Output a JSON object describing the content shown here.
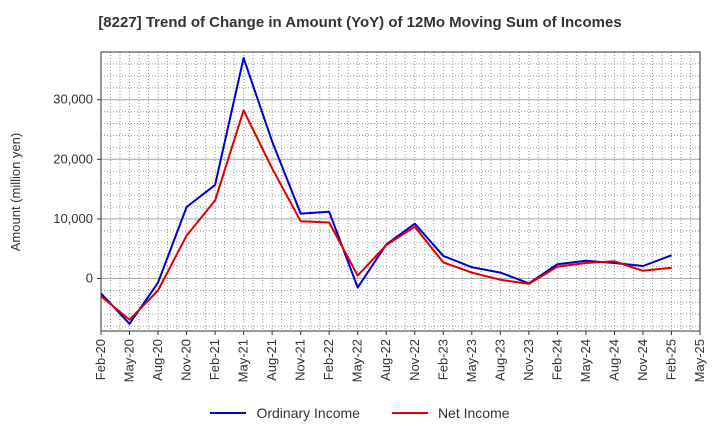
{
  "chart_data": {
    "type": "line",
    "title": "[8227]  Trend of Change in Amount (YoY) of 12Mo Moving Sum of Incomes",
    "ylabel": "Amount (million yen)",
    "xlabel": "",
    "x": [
      "Feb-20",
      "May-20",
      "Aug-20",
      "Nov-20",
      "Feb-21",
      "May-21",
      "Aug-21",
      "Nov-21",
      "Feb-22",
      "May-22",
      "Aug-22",
      "Nov-22",
      "Feb-23",
      "May-23",
      "Aug-23",
      "Nov-23",
      "Feb-24",
      "May-24",
      "Aug-24",
      "Nov-24",
      "Feb-25"
    ],
    "x_ticks": [
      "Feb-20",
      "May-20",
      "Aug-20",
      "Nov-20",
      "Feb-21",
      "May-21",
      "Aug-21",
      "Nov-21",
      "Feb-22",
      "May-22",
      "Aug-22",
      "Nov-22",
      "Feb-23",
      "May-23",
      "Aug-23",
      "Nov-23",
      "Feb-24",
      "May-24",
      "Aug-24",
      "Nov-24",
      "Feb-25",
      "May-25"
    ],
    "y_ticks": [
      0,
      10000,
      20000,
      30000
    ],
    "y_tick_labels": [
      "0",
      "10,000",
      "20,000",
      "30,000"
    ],
    "ylim": [
      -8800,
      38000
    ],
    "grid": true,
    "legend_position": "bottom",
    "series": [
      {
        "name": "Ordinary Income",
        "color": "#0000cc",
        "values": [
          -2500,
          -7600,
          -700,
          12000,
          15700,
          37000,
          23000,
          10900,
          11200,
          -1500,
          5700,
          9200,
          3800,
          1900,
          1000,
          -800,
          2400,
          3000,
          2600,
          2100,
          3900
        ]
      },
      {
        "name": "Net Income",
        "color": "#dd0000",
        "values": [
          -3000,
          -6900,
          -2000,
          7200,
          13100,
          28200,
          18500,
          9600,
          9400,
          500,
          5600,
          8700,
          2700,
          1000,
          -200,
          -900,
          2000,
          2600,
          2900,
          1300,
          1800
        ]
      }
    ]
  }
}
